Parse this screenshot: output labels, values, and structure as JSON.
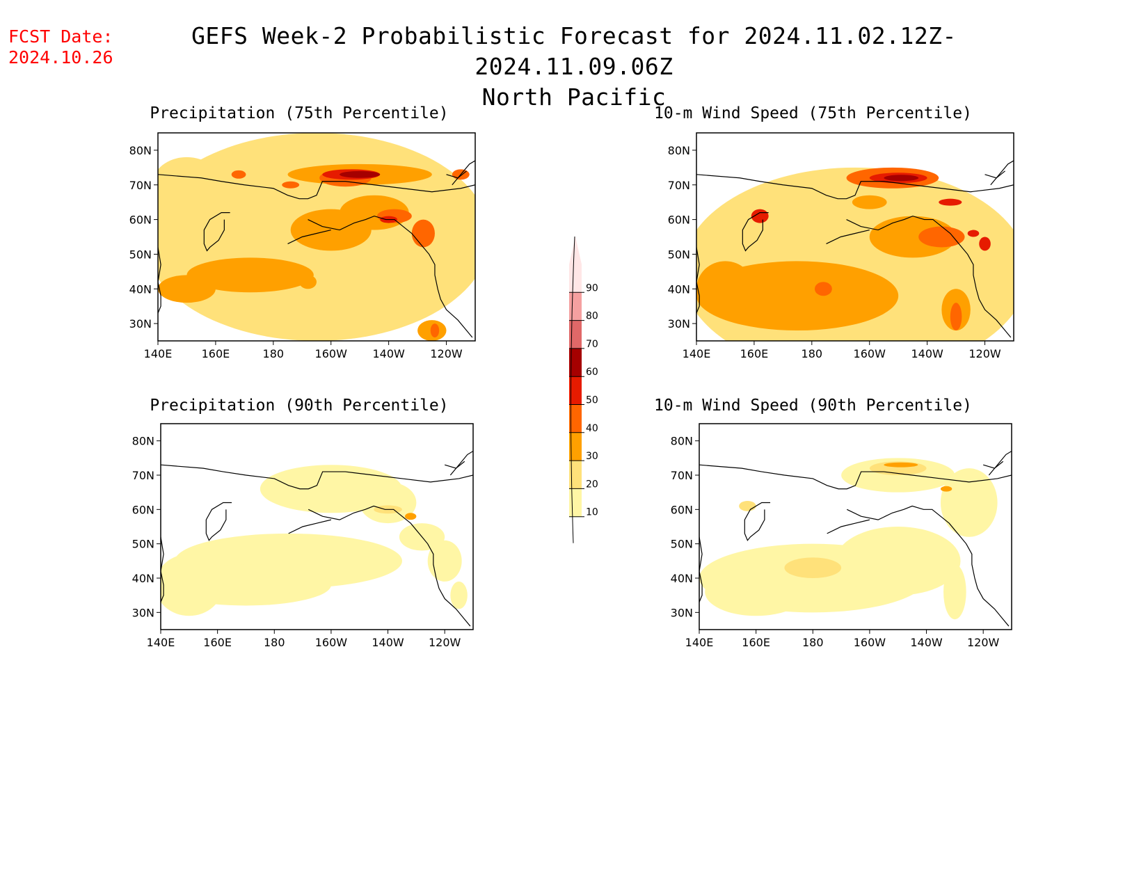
{
  "header": {
    "fcst_label": "FCST Date:",
    "fcst_date": "2024.10.26",
    "title_line1": "GEFS Week-2 Probabilistic Forecast for 2024.11.02.12Z-2024.11.09.06Z",
    "title_line2": "North Pacific"
  },
  "colors": {
    "10": "#fff6a5",
    "20": "#ffe17a",
    "30": "#ffa000",
    "40": "#ff6600",
    "50": "#e61b00",
    "60": "#a50000",
    "70": "#e06868",
    "80": "#f5a0a0",
    "90": "#ffe6e6"
  },
  "axes": {
    "lat_labels": [
      "80N",
      "70N",
      "60N",
      "50N",
      "40N",
      "30N"
    ],
    "lon_labels": [
      "140E",
      "160E",
      "180",
      "160W",
      "140W",
      "120W"
    ]
  },
  "colorbar": {
    "levels": [
      "10",
      "20",
      "30",
      "40",
      "50",
      "60",
      "70",
      "80",
      "90"
    ]
  },
  "panels": [
    {
      "id": "precip75",
      "title": "Precipitation (75th Percentile)"
    },
    {
      "id": "wind75",
      "title": "10-m Wind Speed (75th Percentile)"
    },
    {
      "id": "precip90",
      "title": "Precipitation (90th Percentile)"
    },
    {
      "id": "wind90",
      "title": "10-m Wind Speed (90th Percentile)"
    }
  ]
}
